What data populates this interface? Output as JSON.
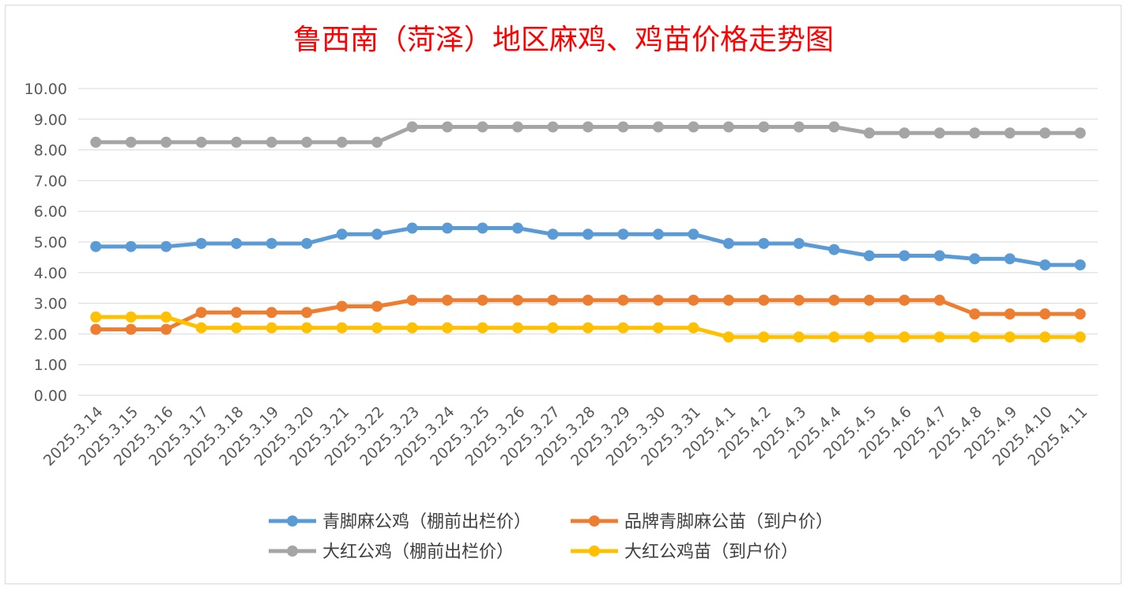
{
  "chart_data": {
    "type": "line",
    "title": "鲁西南（菏泽）地区麻鸡、鸡苗价格走势图",
    "xlabel": "",
    "ylabel": "",
    "ylim": [
      0,
      10
    ],
    "y_ticks": [
      "0.00",
      "1.00",
      "2.00",
      "3.00",
      "4.00",
      "5.00",
      "6.00",
      "7.00",
      "8.00",
      "9.00",
      "10.00"
    ],
    "grid": true,
    "legend_position": "bottom",
    "categories": [
      "2025.3.14",
      "2025.3.15",
      "2025.3.16",
      "2025.3.17",
      "2025.3.18",
      "2025.3.19",
      "2025.3.20",
      "2025.3.21",
      "2025.3.22",
      "2025.3.23",
      "2025.3.24",
      "2025.3.25",
      "2025.3.26",
      "2025.3.27",
      "2025.3.28",
      "2025.3.29",
      "2025.3.30",
      "2025.3.31",
      "2025.4.1",
      "2025.4.2",
      "2025.4.3",
      "2025.4.4",
      "2025.4.5",
      "2025.4.6",
      "2025.4.7",
      "2025.4.8",
      "2025.4.9",
      "2025.4.10",
      "2025.4.11"
    ],
    "series": [
      {
        "name": "青脚麻公鸡（棚前出栏价）",
        "color": "#5b9bd5",
        "values": [
          4.85,
          4.85,
          4.85,
          4.95,
          4.95,
          4.95,
          4.95,
          5.25,
          5.25,
          5.45,
          5.45,
          5.45,
          5.45,
          5.25,
          5.25,
          5.25,
          5.25,
          5.25,
          4.95,
          4.95,
          4.95,
          4.75,
          4.55,
          4.55,
          4.55,
          4.45,
          4.45,
          4.25,
          4.25
        ]
      },
      {
        "name": "品牌青脚麻公苗（到户价）",
        "color": "#ed7d31",
        "values": [
          2.15,
          2.15,
          2.15,
          2.7,
          2.7,
          2.7,
          2.7,
          2.9,
          2.9,
          3.1,
          3.1,
          3.1,
          3.1,
          3.1,
          3.1,
          3.1,
          3.1,
          3.1,
          3.1,
          3.1,
          3.1,
          3.1,
          3.1,
          3.1,
          3.1,
          2.65,
          2.65,
          2.65,
          2.65
        ]
      },
      {
        "name": "大红公鸡（棚前出栏价）",
        "color": "#a5a5a5",
        "values": [
          8.25,
          8.25,
          8.25,
          8.25,
          8.25,
          8.25,
          8.25,
          8.25,
          8.25,
          8.75,
          8.75,
          8.75,
          8.75,
          8.75,
          8.75,
          8.75,
          8.75,
          8.75,
          8.75,
          8.75,
          8.75,
          8.75,
          8.55,
          8.55,
          8.55,
          8.55,
          8.55,
          8.55,
          8.55
        ]
      },
      {
        "name": "大红公鸡苗（到户价）",
        "color": "#ffc000",
        "values": [
          2.55,
          2.55,
          2.55,
          2.2,
          2.2,
          2.2,
          2.2,
          2.2,
          2.2,
          2.2,
          2.2,
          2.2,
          2.2,
          2.2,
          2.2,
          2.2,
          2.2,
          2.2,
          1.9,
          1.9,
          1.9,
          1.9,
          1.9,
          1.9,
          1.9,
          1.9,
          1.9,
          1.9,
          1.9
        ]
      }
    ]
  }
}
